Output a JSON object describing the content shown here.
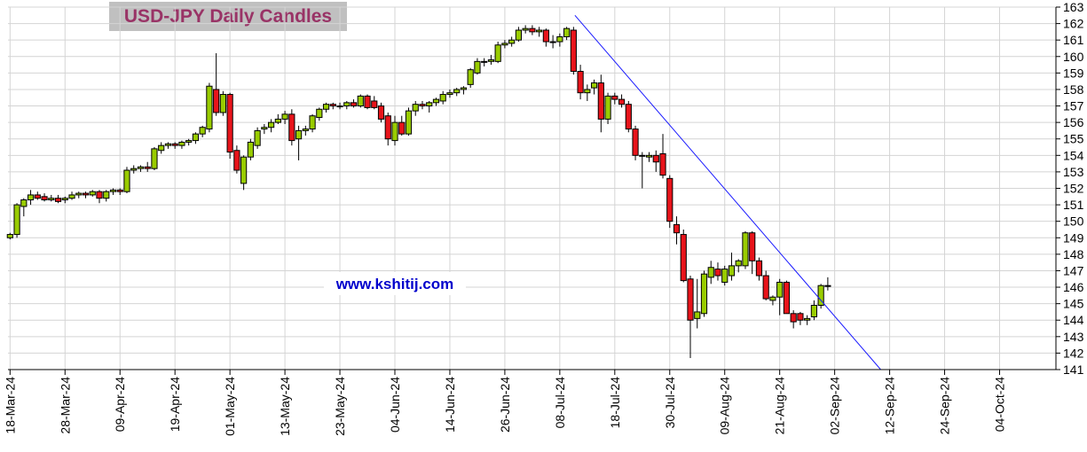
{
  "chart_data": {
    "type": "candlestick",
    "title": "USD-JPY Daily Candles",
    "watermark": "www.kshitij.com",
    "xlim": [
      -0.3,
      152.2
    ],
    "ylim": [
      141,
      163
    ],
    "yticks": [
      141,
      142,
      143,
      144,
      145,
      146,
      147,
      148,
      149,
      150,
      151,
      152,
      153,
      154,
      155,
      156,
      157,
      158,
      159,
      160,
      161,
      162,
      163
    ],
    "xticks": [
      {
        "value": 0,
        "label": "18-Mar-24"
      },
      {
        "value": 8,
        "label": "28-Mar-24"
      },
      {
        "value": 16,
        "label": "09-Apr-24"
      },
      {
        "value": 24,
        "label": "19-Apr-24"
      },
      {
        "value": 32,
        "label": "01-May-24"
      },
      {
        "value": 40,
        "label": "13-May-24"
      },
      {
        "value": 48,
        "label": "23-May-24"
      },
      {
        "value": 56,
        "label": "04-Jun-24"
      },
      {
        "value": 64,
        "label": "14-Jun-24"
      },
      {
        "value": 72,
        "label": "26-Jun-24"
      },
      {
        "value": 80,
        "label": "08-Jul-24"
      },
      {
        "value": 88,
        "label": "18-Jul-24"
      },
      {
        "value": 96,
        "label": "30-Jul-24"
      },
      {
        "value": 104,
        "label": "09-Aug-24"
      },
      {
        "value": 112,
        "label": "21-Aug-24"
      },
      {
        "value": 120,
        "label": "02-Sep-24"
      },
      {
        "value": 128,
        "label": "12-Sep-24"
      },
      {
        "value": 136,
        "label": "24-Sep-24"
      },
      {
        "value": 144,
        "label": "04-Oct-24"
      }
    ],
    "grid": true,
    "up_color": "#99cc00",
    "down_color": "#e8141b",
    "open": [
      149.0,
      149.2,
      150.9,
      151.3,
      151.6,
      151.5,
      151.3,
      151.4,
      151.3,
      151.4,
      151.6,
      151.7,
      151.6,
      151.8,
      151.4,
      151.8,
      151.9,
      151.8,
      153.1,
      153.2,
      153.3,
      153.2,
      154.3,
      154.6,
      154.7,
      154.6,
      154.8,
      154.9,
      155.3,
      155.6,
      158.0,
      156.6,
      157.7,
      154.3,
      152.3,
      153.9,
      154.6,
      155.6,
      155.7,
      156.0,
      156.2,
      156.5,
      155.0,
      155.5,
      155.6,
      156.3,
      156.8,
      157.1,
      157.0,
      157.0,
      157.2,
      157.0,
      157.6,
      157.3,
      157.0,
      156.4,
      154.9,
      156.0,
      155.3,
      156.7,
      157.1,
      157.0,
      157.2,
      157.3,
      157.7,
      157.8,
      158.0,
      158.3,
      159.0,
      159.7,
      159.7,
      159.7,
      160.7,
      160.8,
      161.0,
      161.6,
      161.7,
      161.5,
      161.6,
      160.9,
      160.9,
      161.2,
      161.6,
      159.1,
      157.8,
      158.1,
      158.4,
      156.2,
      157.6,
      157.4,
      157.1,
      155.6,
      154.0,
      153.9,
      154.0,
      154.1,
      152.6,
      149.8,
      149.2,
      146.5,
      144.1,
      144.4,
      146.6,
      147.1,
      146.3,
      146.7,
      147.3,
      147.3,
      149.3,
      147.6,
      146.7,
      145.2,
      145.4,
      146.3,
      144.4,
      144.4,
      144.0,
      144.2,
      144.9,
      146.1
    ],
    "high": [
      149.3,
      151.1,
      151.4,
      151.9,
      151.8,
      151.7,
      151.6,
      151.6,
      151.5,
      151.8,
      151.8,
      151.8,
      151.9,
      151.9,
      151.9,
      152.0,
      152.0,
      153.3,
      153.4,
      153.4,
      153.6,
      154.5,
      154.8,
      154.8,
      154.8,
      154.9,
      155.0,
      155.4,
      155.8,
      158.4,
      160.2,
      157.9,
      157.8,
      154.6,
      154.0,
      155.0,
      155.7,
      155.9,
      156.2,
      156.5,
      156.7,
      156.8,
      155.8,
      155.8,
      156.5,
      156.9,
      157.2,
      157.2,
      157.2,
      157.3,
      157.4,
      157.7,
      157.7,
      157.6,
      157.2,
      156.6,
      156.4,
      156.4,
      156.9,
      157.3,
      157.3,
      157.3,
      157.5,
      157.9,
      158.0,
      158.1,
      158.2,
      159.3,
      159.9,
      159.9,
      160.1,
      160.9,
      161.0,
      161.2,
      161.8,
      161.9,
      161.9,
      161.8,
      161.7,
      161.3,
      161.4,
      161.8,
      161.8,
      159.5,
      158.3,
      158.6,
      158.9,
      157.8,
      157.8,
      157.7,
      157.3,
      155.8,
      154.2,
      154.2,
      154.3,
      155.3,
      152.8,
      150.3,
      149.5,
      146.7,
      146.5,
      147.0,
      147.6,
      147.5,
      147.3,
      148.1,
      147.7,
      149.4,
      149.4,
      147.8,
      147.0,
      145.5,
      146.5,
      146.4,
      144.6,
      144.5,
      144.3,
      145.2,
      146.2,
      146.6
    ],
    "low": [
      148.9,
      149.0,
      150.3,
      151.0,
      151.3,
      151.2,
      151.2,
      151.1,
      151.1,
      151.3,
      151.4,
      151.4,
      151.5,
      151.1,
      151.2,
      151.6,
      151.6,
      151.7,
      152.9,
      153.0,
      153.0,
      153.1,
      154.1,
      154.4,
      154.4,
      154.4,
      154.6,
      154.7,
      155.1,
      155.4,
      156.4,
      156.4,
      153.8,
      152.9,
      151.9,
      153.7,
      154.4,
      155.3,
      155.4,
      155.9,
      155.9,
      154.6,
      153.7,
      155.2,
      155.4,
      156.1,
      156.6,
      156.8,
      156.8,
      156.8,
      156.9,
      156.9,
      156.8,
      156.8,
      156.0,
      154.6,
      154.6,
      155.2,
      155.2,
      156.4,
      156.8,
      156.6,
      157.0,
      157.1,
      157.5,
      157.6,
      157.7,
      158.1,
      158.9,
      159.4,
      159.5,
      159.6,
      160.5,
      160.6,
      160.9,
      161.4,
      161.3,
      161.2,
      160.6,
      160.5,
      160.6,
      161.0,
      158.9,
      157.4,
      157.3,
      157.7,
      155.4,
      155.9,
      157.1,
      156.9,
      155.4,
      153.7,
      152.0,
      153.6,
      153.0,
      152.6,
      149.6,
      148.6,
      146.3,
      141.7,
      143.5,
      144.2,
      146.2,
      146.4,
      146.1,
      146.4,
      146.9,
      147.1,
      146.8,
      146.4,
      145.2,
      144.9,
      144.3,
      144.4,
      143.5,
      143.7,
      143.7,
      144.0,
      144.7,
      145.8
    ],
    "close": [
      149.2,
      151.0,
      151.3,
      151.6,
      151.4,
      151.3,
      151.4,
      151.2,
      151.4,
      151.6,
      151.7,
      151.6,
      151.8,
      151.4,
      151.8,
      151.9,
      151.8,
      153.1,
      153.2,
      153.3,
      153.2,
      154.4,
      154.6,
      154.7,
      154.6,
      154.8,
      154.9,
      155.3,
      155.7,
      158.2,
      156.6,
      157.7,
      154.2,
      153.1,
      153.9,
      154.8,
      155.5,
      155.7,
      156.0,
      156.2,
      156.5,
      154.9,
      155.5,
      155.6,
      156.4,
      156.8,
      157.1,
      157.0,
      157.0,
      157.2,
      157.0,
      157.6,
      156.9,
      156.9,
      156.2,
      155.0,
      156.0,
      155.3,
      156.7,
      157.1,
      157.0,
      157.2,
      157.4,
      157.7,
      157.8,
      158.0,
      158.1,
      159.2,
      159.7,
      159.7,
      159.8,
      160.7,
      160.8,
      161.0,
      161.6,
      161.7,
      161.5,
      161.6,
      160.9,
      160.9,
      161.2,
      161.7,
      159.1,
      157.8,
      158.0,
      158.4,
      156.2,
      157.6,
      157.4,
      157.1,
      155.6,
      154.0,
      154.0,
      154.0,
      153.6,
      152.8,
      150.0,
      149.3,
      146.4,
      144.0,
      144.5,
      146.8,
      147.2,
      146.7,
      147.1,
      147.3,
      147.6,
      149.3,
      147.6,
      146.7,
      145.3,
      145.4,
      146.3,
      144.4,
      143.9,
      144.0,
      144.1,
      144.9,
      146.1,
      146.1
    ],
    "trendline": {
      "x": [
        82.2,
        126.7
      ],
      "y": [
        162.5,
        141
      ],
      "color": "#1a1aff"
    }
  }
}
